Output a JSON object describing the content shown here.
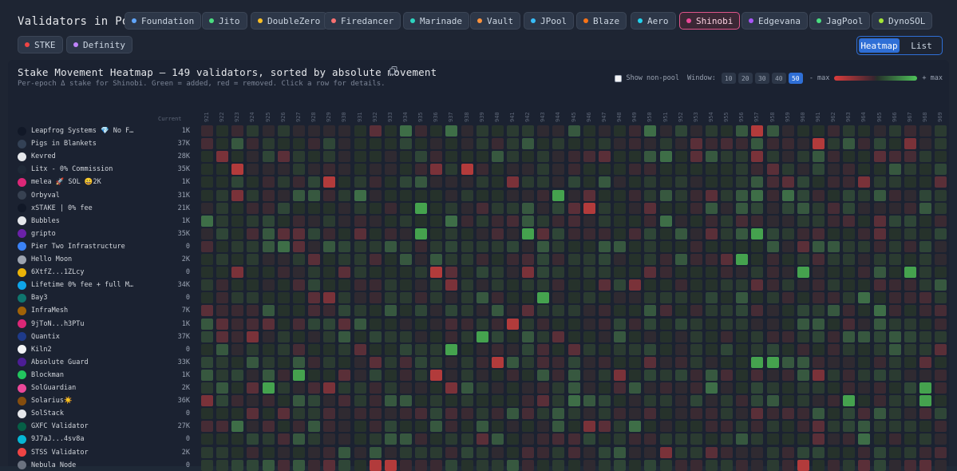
{
  "pools": {
    "label": "Validators in Pool:",
    "items": [
      {
        "name": "Foundation",
        "color": "#60a5fa",
        "active": false
      },
      {
        "name": "Jito",
        "color": "#4ade80",
        "active": false
      },
      {
        "name": "DoubleZero",
        "color": "#fbbf24",
        "active": false
      },
      {
        "name": "Firedancer",
        "color": "#f87171",
        "active": false
      },
      {
        "name": "Marinade",
        "color": "#2dd4bf",
        "active": false
      },
      {
        "name": "Vault",
        "color": "#fb923c",
        "active": false
      },
      {
        "name": "JPool",
        "color": "#38bdf8",
        "active": false
      },
      {
        "name": "Blaze",
        "color": "#f97316",
        "active": false
      },
      {
        "name": "Aero",
        "color": "#22d3ee",
        "active": false
      },
      {
        "name": "Shinobi",
        "color": "#ec4899",
        "active": true
      },
      {
        "name": "Edgevana",
        "color": "#a855f7",
        "active": false
      },
      {
        "name": "JagPool",
        "color": "#4ade80",
        "active": false
      },
      {
        "name": "DynoSOL",
        "color": "#a3e635",
        "active": false
      },
      {
        "name": "STKE",
        "color": "#ef4444",
        "active": false
      },
      {
        "name": "Definity",
        "color": "#c084fc",
        "active": false
      }
    ]
  },
  "view": {
    "heatmap_label": "Heatmap",
    "list_label": "List"
  },
  "panel": {
    "title": "Stake Movement Heatmap — 149 validators, sorted by absolute movement",
    "subtitle": "Per-epoch Δ stake for Shinobi. Green = added, red = removed. Click a row for details.",
    "show_nonpool_label": "Show non-pool",
    "window_label": "Window:",
    "window_options": [
      "10",
      "20",
      "30",
      "40",
      "50"
    ],
    "window_selected": "50",
    "legend_min": "- max",
    "legend_max": "+ max"
  },
  "heatmap": {
    "current_header": "Current",
    "epochs": [
      "921",
      "922",
      "923",
      "924",
      "925",
      "926",
      "927",
      "928",
      "929",
      "930",
      "931",
      "932",
      "933",
      "934",
      "935",
      "936",
      "937",
      "938",
      "939",
      "940",
      "941",
      "942",
      "943",
      "944",
      "945",
      "946",
      "947",
      "948",
      "949",
      "950",
      "951",
      "952",
      "953",
      "954",
      "955",
      "956",
      "957",
      "958",
      "959",
      "960",
      "961",
      "962",
      "963",
      "964",
      "965",
      "966",
      "967",
      "968",
      "969"
    ],
    "rows": [
      {
        "name": "Leapfrog Systems 💎 No F…",
        "current": "1K",
        "avatar": "#111827"
      },
      {
        "name": "Pigs in Blankets",
        "current": "37K",
        "avatar": "#334155"
      },
      {
        "name": "Kevred",
        "current": "28K",
        "avatar": "#e5e7eb"
      },
      {
        "name": "Litx - 0% Commission",
        "current": "35K",
        "avatar": "#1f2937"
      },
      {
        "name": "melea 🚀 SOL 😀2K",
        "current": "1K",
        "avatar": "#db2777"
      },
      {
        "name": "Orbyval",
        "current": "31K",
        "avatar": "#374151"
      },
      {
        "name": "xSTAKE | 0% fee",
        "current": "21K",
        "avatar": "#111827"
      },
      {
        "name": "Bubbles",
        "current": "1K",
        "avatar": "#e5e7eb"
      },
      {
        "name": "gripto",
        "current": "35K",
        "avatar": "#6b21a8"
      },
      {
        "name": "Pier Two Infrastructure",
        "current": "0",
        "avatar": "#3b82f6"
      },
      {
        "name": "Hello Moon",
        "current": "2K",
        "avatar": "#9ca3af"
      },
      {
        "name": "6XtfZ...1ZLcy",
        "current": "0",
        "avatar": "#eab308"
      },
      {
        "name": "Lifetime 0% fee + full M…",
        "current": "34K",
        "avatar": "#0ea5e9"
      },
      {
        "name": "Bay3",
        "current": "0",
        "avatar": "#0f766e"
      },
      {
        "name": "InfraMesh",
        "current": "7K",
        "avatar": "#a16207"
      },
      {
        "name": "9jToN...h3PTu",
        "current": "1K",
        "avatar": "#db2777"
      },
      {
        "name": "Quantix",
        "current": "37K",
        "avatar": "#1e3a8a"
      },
      {
        "name": "Kiln2",
        "current": "0",
        "avatar": "#f3f4f6"
      },
      {
        "name": "Absolute Guard",
        "current": "33K",
        "avatar": "#4c1d95"
      },
      {
        "name": "Blockman",
        "current": "1K",
        "avatar": "#22c55e"
      },
      {
        "name": "SolGuardian",
        "current": "2K",
        "avatar": "#ec4899"
      },
      {
        "name": "Solarius☀️",
        "current": "36K",
        "avatar": "#854d0e"
      },
      {
        "name": "SolStack",
        "current": "0",
        "avatar": "#e5e7eb"
      },
      {
        "name": "GXFC Validator",
        "current": "27K",
        "avatar": "#065f46"
      },
      {
        "name": "9J7aJ...4sv8a",
        "current": "0",
        "avatar": "#06b6d4"
      },
      {
        "name": "STSS Validator",
        "current": "2K",
        "avatar": "#ef4444"
      },
      {
        "name": "Nebula Node",
        "current": "0",
        "avatar": "#6b7280"
      }
    ]
  }
}
